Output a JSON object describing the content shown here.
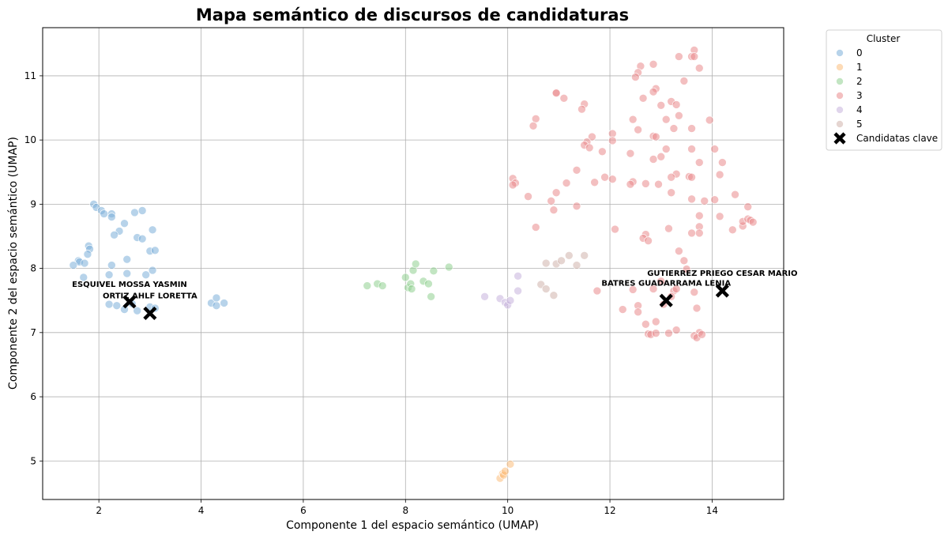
{
  "chart_data": {
    "type": "scatter",
    "title": "Mapa semántico de discursos de candidaturas",
    "xlabel": "Componente 1 del espacio semántico (UMAP)",
    "ylabel": "Componente 2 del espacio semántico (UMAP)",
    "xlim": [
      0.9,
      15.4
    ],
    "ylim": [
      4.4,
      11.75
    ],
    "xticks": [
      2,
      4,
      6,
      8,
      10,
      12,
      14
    ],
    "yticks": [
      5,
      6,
      7,
      8,
      9,
      10,
      11
    ],
    "grid": true,
    "legend": {
      "title": "Cluster",
      "placement": "outside-top-right",
      "entries": [
        "0",
        "1",
        "2",
        "3",
        "4",
        "5",
        "Candidatas clave"
      ]
    },
    "series": [
      {
        "name": "0",
        "color": "#7bafd8",
        "points": [
          [
            1.9,
            9.0
          ],
          [
            1.95,
            8.95
          ],
          [
            2.05,
            8.9
          ],
          [
            2.1,
            8.85
          ],
          [
            2.25,
            8.85
          ],
          [
            2.25,
            8.8
          ],
          [
            2.7,
            8.87
          ],
          [
            2.85,
            8.9
          ],
          [
            2.4,
            8.58
          ],
          [
            2.3,
            8.52
          ],
          [
            2.5,
            8.7
          ],
          [
            2.75,
            8.48
          ],
          [
            2.85,
            8.46
          ],
          [
            3.05,
            8.6
          ],
          [
            1.8,
            8.35
          ],
          [
            1.82,
            8.3
          ],
          [
            1.78,
            8.22
          ],
          [
            1.6,
            8.12
          ],
          [
            1.62,
            8.1
          ],
          [
            1.5,
            8.05
          ],
          [
            1.72,
            8.08
          ],
          [
            2.25,
            8.05
          ],
          [
            2.55,
            8.14
          ],
          [
            3.0,
            8.27
          ],
          [
            3.1,
            8.28
          ],
          [
            1.7,
            7.86
          ],
          [
            2.2,
            7.9
          ],
          [
            2.55,
            7.92
          ],
          [
            2.92,
            7.9
          ],
          [
            3.05,
            7.97
          ],
          [
            2.2,
            7.44
          ],
          [
            2.35,
            7.42
          ],
          [
            2.5,
            7.36
          ],
          [
            2.75,
            7.34
          ],
          [
            2.65,
            7.45
          ],
          [
            3.0,
            7.4
          ],
          [
            3.1,
            7.38
          ],
          [
            4.2,
            7.46
          ],
          [
            4.3,
            7.42
          ],
          [
            4.3,
            7.54
          ],
          [
            4.45,
            7.46
          ]
        ]
      },
      {
        "name": "1",
        "color": "#fbbd7b",
        "points": [
          [
            9.85,
            4.73
          ],
          [
            9.9,
            4.8
          ],
          [
            9.92,
            4.78
          ],
          [
            9.95,
            4.84
          ],
          [
            10.05,
            4.95
          ]
        ]
      },
      {
        "name": "2",
        "color": "#8fd08f",
        "points": [
          [
            7.25,
            7.73
          ],
          [
            7.45,
            7.76
          ],
          [
            7.55,
            7.73
          ],
          [
            8.0,
            7.86
          ],
          [
            8.05,
            7.7
          ],
          [
            8.1,
            7.76
          ],
          [
            8.12,
            7.68
          ],
          [
            8.15,
            7.97
          ],
          [
            8.2,
            8.07
          ],
          [
            8.35,
            7.8
          ],
          [
            8.45,
            7.76
          ],
          [
            8.5,
            7.56
          ],
          [
            8.55,
            7.96
          ],
          [
            8.85,
            8.02
          ]
        ]
      },
      {
        "name": "3",
        "color": "#ea8a8c",
        "points": [
          [
            13.65,
            11.4
          ],
          [
            13.6,
            11.3
          ],
          [
            13.65,
            11.3
          ],
          [
            13.35,
            11.3
          ],
          [
            12.6,
            11.15
          ],
          [
            12.85,
            11.18
          ],
          [
            13.75,
            11.12
          ],
          [
            12.55,
            11.05
          ],
          [
            12.5,
            10.98
          ],
          [
            13.45,
            10.92
          ],
          [
            12.9,
            10.8
          ],
          [
            12.85,
            10.75
          ],
          [
            10.95,
            10.74
          ],
          [
            10.95,
            10.73
          ],
          [
            11.1,
            10.65
          ],
          [
            12.65,
            10.65
          ],
          [
            13.2,
            10.6
          ],
          [
            13.3,
            10.55
          ],
          [
            11.5,
            10.56
          ],
          [
            11.45,
            10.48
          ],
          [
            13.0,
            10.54
          ],
          [
            13.35,
            10.38
          ],
          [
            10.55,
            10.33
          ],
          [
            10.5,
            10.22
          ],
          [
            12.45,
            10.32
          ],
          [
            13.1,
            10.32
          ],
          [
            12.55,
            10.16
          ],
          [
            13.25,
            10.18
          ],
          [
            13.6,
            10.18
          ],
          [
            13.95,
            10.31
          ],
          [
            12.05,
            10.1
          ],
          [
            11.65,
            10.05
          ],
          [
            12.85,
            10.06
          ],
          [
            12.9,
            10.05
          ],
          [
            11.55,
            9.97
          ],
          [
            11.5,
            9.92
          ],
          [
            11.6,
            9.88
          ],
          [
            11.85,
            9.82
          ],
          [
            13.6,
            9.86
          ],
          [
            13.1,
            9.86
          ],
          [
            12.05,
            9.99
          ],
          [
            12.4,
            9.79
          ],
          [
            14.05,
            9.86
          ],
          [
            13.75,
            9.65
          ],
          [
            14.2,
            9.65
          ],
          [
            13.0,
            9.74
          ],
          [
            12.85,
            9.7
          ],
          [
            13.3,
            9.47
          ],
          [
            13.2,
            9.42
          ],
          [
            13.55,
            9.43
          ],
          [
            13.6,
            9.42
          ],
          [
            11.35,
            9.53
          ],
          [
            11.9,
            9.42
          ],
          [
            11.7,
            9.34
          ],
          [
            12.05,
            9.39
          ],
          [
            12.45,
            9.35
          ],
          [
            12.4,
            9.31
          ],
          [
            12.7,
            9.32
          ],
          [
            12.95,
            9.31
          ],
          [
            14.15,
            9.46
          ],
          [
            14.45,
            9.15
          ],
          [
            10.1,
            9.4
          ],
          [
            10.15,
            9.33
          ],
          [
            10.1,
            9.3
          ],
          [
            10.4,
            9.12
          ],
          [
            10.95,
            9.18
          ],
          [
            11.15,
            9.33
          ],
          [
            11.35,
            8.97
          ],
          [
            10.9,
            8.91
          ],
          [
            10.85,
            9.05
          ],
          [
            13.2,
            9.18
          ],
          [
            13.6,
            9.08
          ],
          [
            13.85,
            9.05
          ],
          [
            14.05,
            9.07
          ],
          [
            13.75,
            8.82
          ],
          [
            14.15,
            8.81
          ],
          [
            14.7,
            8.96
          ],
          [
            14.4,
            8.6
          ],
          [
            14.6,
            8.66
          ],
          [
            14.6,
            8.73
          ],
          [
            14.7,
            8.77
          ],
          [
            14.75,
            8.75
          ],
          [
            14.8,
            8.72
          ],
          [
            13.75,
            8.65
          ],
          [
            13.6,
            8.55
          ],
          [
            12.7,
            8.53
          ],
          [
            12.65,
            8.47
          ],
          [
            12.75,
            8.43
          ],
          [
            12.1,
            8.61
          ],
          [
            13.15,
            8.62
          ],
          [
            10.55,
            8.64
          ],
          [
            13.35,
            8.27
          ],
          [
            13.45,
            8.12
          ],
          [
            13.75,
            8.55
          ],
          [
            13.5,
            7.99
          ],
          [
            13.0,
            7.8
          ],
          [
            12.85,
            7.68
          ],
          [
            13.25,
            7.65
          ],
          [
            13.3,
            7.68
          ],
          [
            13.65,
            7.63
          ],
          [
            11.75,
            7.65
          ],
          [
            12.45,
            7.67
          ],
          [
            12.55,
            7.42
          ],
          [
            12.55,
            7.32
          ],
          [
            12.25,
            7.36
          ],
          [
            13.05,
            7.44
          ],
          [
            13.2,
            7.56
          ],
          [
            13.7,
            7.38
          ],
          [
            12.7,
            7.13
          ],
          [
            12.9,
            7.17
          ],
          [
            12.75,
            6.98
          ],
          [
            12.8,
            6.97
          ],
          [
            12.9,
            6.99
          ],
          [
            13.15,
            6.99
          ],
          [
            13.3,
            7.04
          ],
          [
            13.75,
            7.0
          ],
          [
            13.65,
            6.95
          ],
          [
            13.7,
            6.92
          ],
          [
            13.8,
            6.97
          ]
        ]
      },
      {
        "name": "4",
        "color": "#c7b2dd",
        "points": [
          [
            9.55,
            7.56
          ],
          [
            9.85,
            7.53
          ],
          [
            9.95,
            7.47
          ],
          [
            10.0,
            7.43
          ],
          [
            10.05,
            7.5
          ],
          [
            10.2,
            7.88
          ],
          [
            10.2,
            7.65
          ]
        ]
      },
      {
        "name": "5",
        "color": "#cfb3ab",
        "points": [
          [
            10.75,
            8.08
          ],
          [
            10.95,
            8.07
          ],
          [
            11.05,
            8.12
          ],
          [
            11.2,
            8.2
          ],
          [
            11.35,
            8.05
          ],
          [
            11.5,
            8.2
          ],
          [
            10.65,
            7.75
          ],
          [
            10.75,
            7.68
          ],
          [
            10.9,
            7.58
          ]
        ]
      }
    ],
    "key_candidates": {
      "name": "Candidatas clave",
      "color": "#000000",
      "points": [
        {
          "x": 2.6,
          "y": 7.48,
          "label": "ESQUIVEL MOSSA YASMIN",
          "label_y": 7.75
        },
        {
          "x": 3.0,
          "y": 7.3,
          "label": "ORTIZ AHLF LORETTA",
          "label_y": 7.57
        },
        {
          "x": 13.1,
          "y": 7.5,
          "label": "BATRES GUADARRAMA LENIA",
          "label_y": 7.77
        },
        {
          "x": 14.2,
          "y": 7.65,
          "label": "GUTIERREZ PRIEGO CESAR MARIO",
          "label_y": 7.92
        }
      ]
    }
  }
}
